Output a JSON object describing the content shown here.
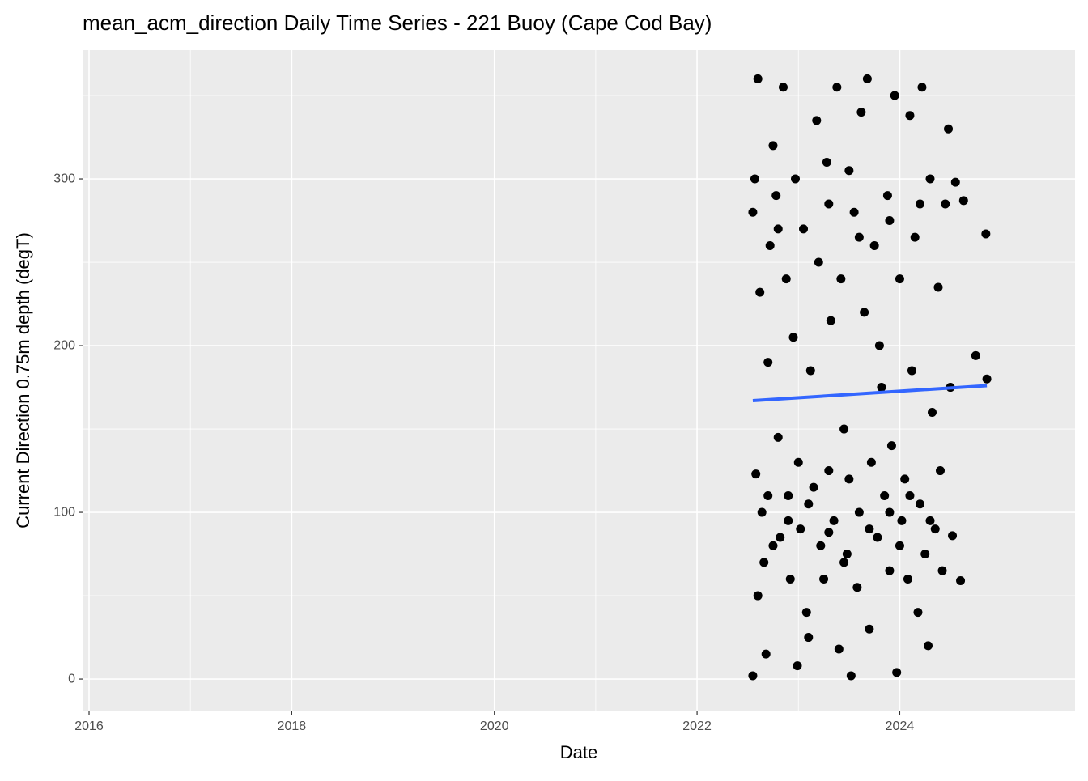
{
  "chart_data": {
    "type": "scatter",
    "title": "mean_acm_direction Daily Time Series - 221 Buoy (Cape Cod Bay)",
    "x_label": "Date",
    "y_label": "Current Direction 0.75m depth (degT)",
    "xlim": [
      2015.936,
      2025.73
    ],
    "ylim": [
      -18.9,
      377.2
    ],
    "xticks": [
      2016,
      2018,
      2020,
      2022,
      2024
    ],
    "yticks": [
      0,
      100,
      200,
      300
    ],
    "grid": true,
    "background": "#ebebeb",
    "series": [
      {
        "type": "scatter",
        "color": "#000000",
        "x": [
          2022.55,
          2022.57,
          2022.6,
          2022.62,
          2022.58,
          2022.64,
          2022.66,
          2022.6,
          2022.68,
          2022.7,
          2022.72,
          2022.75,
          2022.78,
          2022.8,
          2022.82,
          2022.85,
          2022.88,
          2022.9,
          2022.92,
          2022.95,
          2022.97,
          2022.99,
          2023.0,
          2023.02,
          2023.05,
          2023.08,
          2023.1,
          2023.12,
          2023.15,
          2023.18,
          2023.2,
          2023.22,
          2023.25,
          2023.28,
          2023.3,
          2023.32,
          2023.35,
          2023.38,
          2023.4,
          2023.42,
          2023.45,
          2023.48,
          2023.5,
          2023.52,
          2023.55,
          2023.58,
          2023.6,
          2023.62,
          2023.65,
          2023.68,
          2023.7,
          2023.72,
          2023.75,
          2023.78,
          2023.8,
          2023.82,
          2023.85,
          2023.88,
          2023.9,
          2023.92,
          2023.95,
          2023.97,
          2024.0,
          2024.02,
          2024.05,
          2024.08,
          2024.1,
          2024.12,
          2024.15,
          2024.18,
          2024.2,
          2024.22,
          2024.25,
          2024.28,
          2024.3,
          2024.32,
          2024.35,
          2024.38,
          2024.4,
          2024.42,
          2024.45,
          2024.48,
          2024.5,
          2024.52,
          2024.55,
          2024.6,
          2024.63,
          2024.75,
          2024.85,
          2024.86,
          2022.55,
          2022.7,
          2022.9,
          2023.1,
          2023.3,
          2023.5,
          2023.7,
          2023.9,
          2024.1,
          2024.3,
          2022.8,
          2023.3,
          2023.6,
          2023.9,
          2024.2,
          2022.75,
          2023.45,
          2024.0
        ],
        "values": [
          2,
          300,
          360,
          232,
          123,
          100,
          70,
          50,
          15,
          190,
          260,
          320,
          290,
          145,
          85,
          355,
          240,
          110,
          60,
          205,
          300,
          8,
          130,
          90,
          270,
          40,
          25,
          185,
          115,
          335,
          250,
          80,
          60,
          310,
          125,
          215,
          95,
          355,
          18,
          240,
          150,
          75,
          305,
          2,
          280,
          55,
          100,
          340,
          220,
          360,
          30,
          130,
          260,
          85,
          200,
          175,
          110,
          290,
          65,
          140,
          350,
          4,
          240,
          95,
          120,
          60,
          338,
          185,
          265,
          40,
          105,
          355,
          75,
          20,
          300,
          160,
          90,
          235,
          125,
          65,
          285,
          330,
          175,
          86,
          298,
          59,
          287,
          194,
          267,
          180,
          280,
          110,
          95,
          105,
          88,
          120,
          90,
          100,
          110,
          95,
          270,
          285,
          265,
          275,
          285,
          80,
          70,
          80
        ]
      },
      {
        "type": "line",
        "color": "#3366ff",
        "x": [
          2022.55,
          2024.86
        ],
        "values": [
          167,
          176
        ]
      }
    ]
  }
}
